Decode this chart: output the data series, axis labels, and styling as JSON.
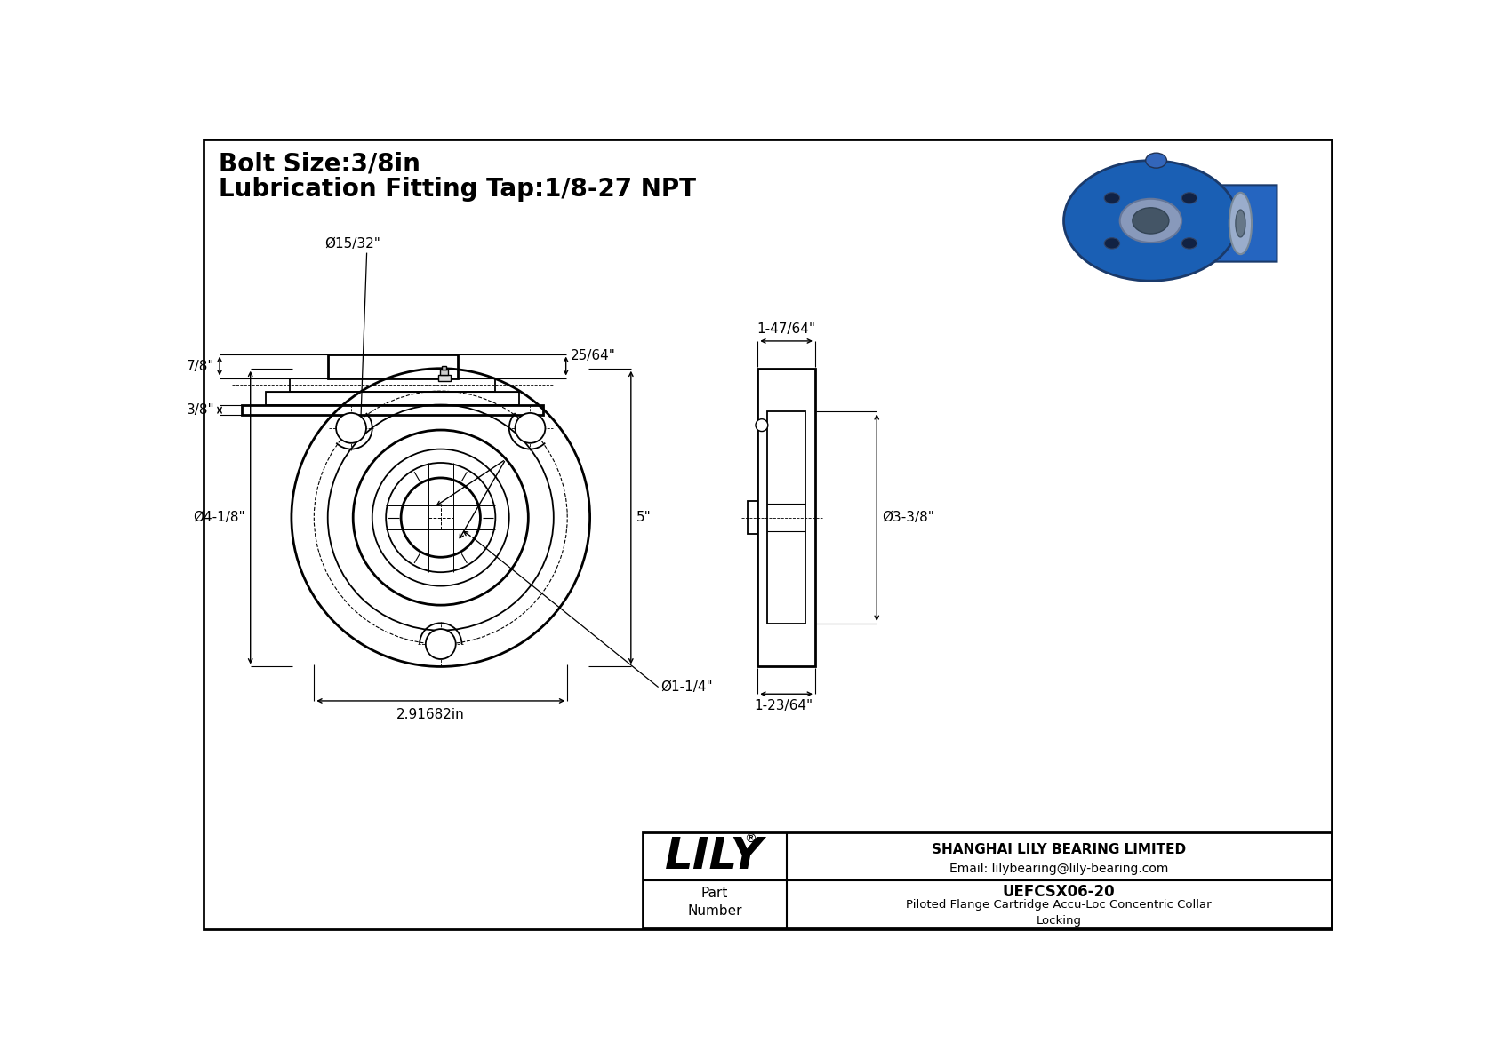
{
  "bg_color": "#ffffff",
  "line_color": "#000000",
  "title_line1": "Bolt Size:3/8in",
  "title_line2": "Lubrication Fitting Tap:1/8-27 NPT",
  "title_fontsize": 20,
  "dim_fontsize": 11,
  "company_name": "SHANGHAI LILY BEARING LIMITED",
  "company_email": "Email: lilybearing@lily-bearing.com",
  "brand": "LILY",
  "brand_reg": "®",
  "part_label": "Part\nNumber",
  "part_number": "UEFCSX06-20",
  "part_desc": "Piloted Flange Cartridge Accu-Loc Concentric Collar\nLocking",
  "dim_bolt_hole": "Ø15/32\"",
  "dim_flange_od": "Ø4-1/8\"",
  "dim_height": "5\"",
  "dim_bc": "2.91682in",
  "dim_bore": "Ø1-1/4\"",
  "dim_side_width": "1-47/64\"",
  "dim_side_od": "Ø3-3/8\"",
  "dim_side_base": "1-23/64\"",
  "dim_bot_left": "7/8\"",
  "dim_bot_right": "25/64\"",
  "dim_bot_base": "3/8\""
}
